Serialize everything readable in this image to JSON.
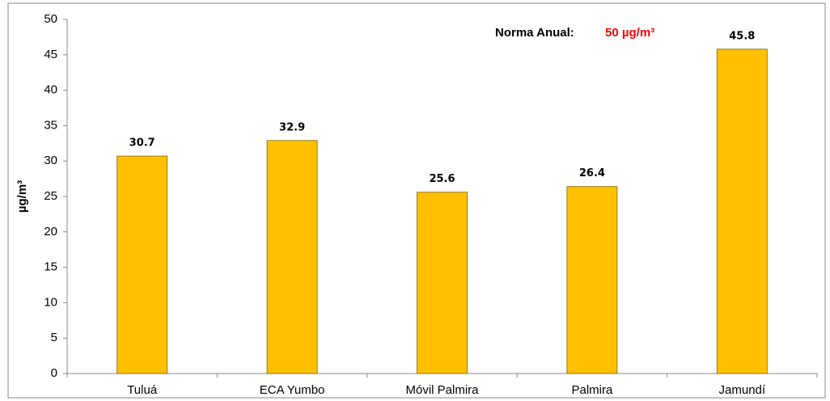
{
  "chart_data": {
    "type": "bar",
    "y_label": "µg/m³",
    "annotation": {
      "text": "Norma Anual:",
      "value_text": "50 µg/m³",
      "value_color": "#ff0000"
    },
    "categories": [
      "Tuluá",
      "ECA Yumbo",
      "Móvil Palmira",
      "Palmira",
      "Jamundí"
    ],
    "values": [
      30.7,
      32.9,
      25.6,
      26.4,
      45.8
    ],
    "color": "#ffc000",
    "ylim": [
      0,
      50
    ],
    "yticks": [
      0,
      5,
      10,
      15,
      20,
      25,
      30,
      35,
      40,
      45,
      50
    ],
    "grid": false
  }
}
